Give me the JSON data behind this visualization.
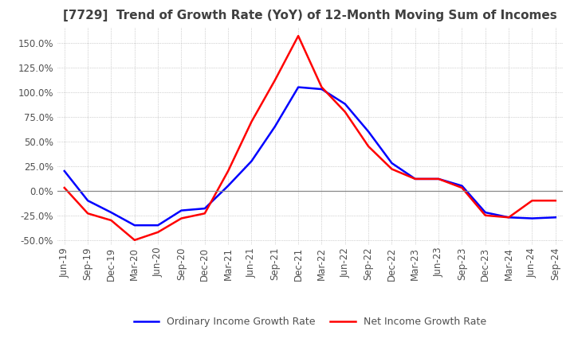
{
  "title": "[7729]  Trend of Growth Rate (YoY) of 12-Month Moving Sum of Incomes",
  "xlabels": [
    "Jun-19",
    "Sep-19",
    "Dec-19",
    "Mar-20",
    "Jun-20",
    "Sep-20",
    "Dec-20",
    "Mar-21",
    "Jun-21",
    "Sep-21",
    "Dec-21",
    "Mar-22",
    "Jun-22",
    "Sep-22",
    "Dec-22",
    "Mar-23",
    "Jun-23",
    "Sep-23",
    "Dec-23",
    "Mar-24",
    "Jun-24",
    "Sep-24"
  ],
  "ylim": [
    -55,
    165
  ],
  "yticks": [
    -50.0,
    -25.0,
    0.0,
    25.0,
    50.0,
    75.0,
    100.0,
    125.0,
    150.0
  ],
  "ordinary_income": [
    20.0,
    -10.0,
    -22.0,
    -35.0,
    -35.0,
    -20.0,
    -18.0,
    5.0,
    30.0,
    65.0,
    105.0,
    103.0,
    88.0,
    60.0,
    28.0,
    12.0,
    12.0,
    5.0,
    -22.0,
    -27.0,
    -28.0,
    -27.0
  ],
  "net_income": [
    3.0,
    -23.0,
    -30.0,
    -50.0,
    -42.0,
    -28.0,
    -23.0,
    20.0,
    70.0,
    112.0,
    157.0,
    105.0,
    80.0,
    45.0,
    22.0,
    12.0,
    12.0,
    3.0,
    -25.0,
    -27.0,
    -10.0,
    -10.0
  ],
  "ordinary_color": "#0000ff",
  "net_color": "#ff0000",
  "background_color": "#ffffff",
  "grid_color": "#aaaaaa",
  "title_color": "#404040",
  "legend_ordinary": "Ordinary Income Growth Rate",
  "legend_net": "Net Income Growth Rate",
  "title_fontsize": 11,
  "tick_fontsize": 8.5,
  "legend_fontsize": 9
}
